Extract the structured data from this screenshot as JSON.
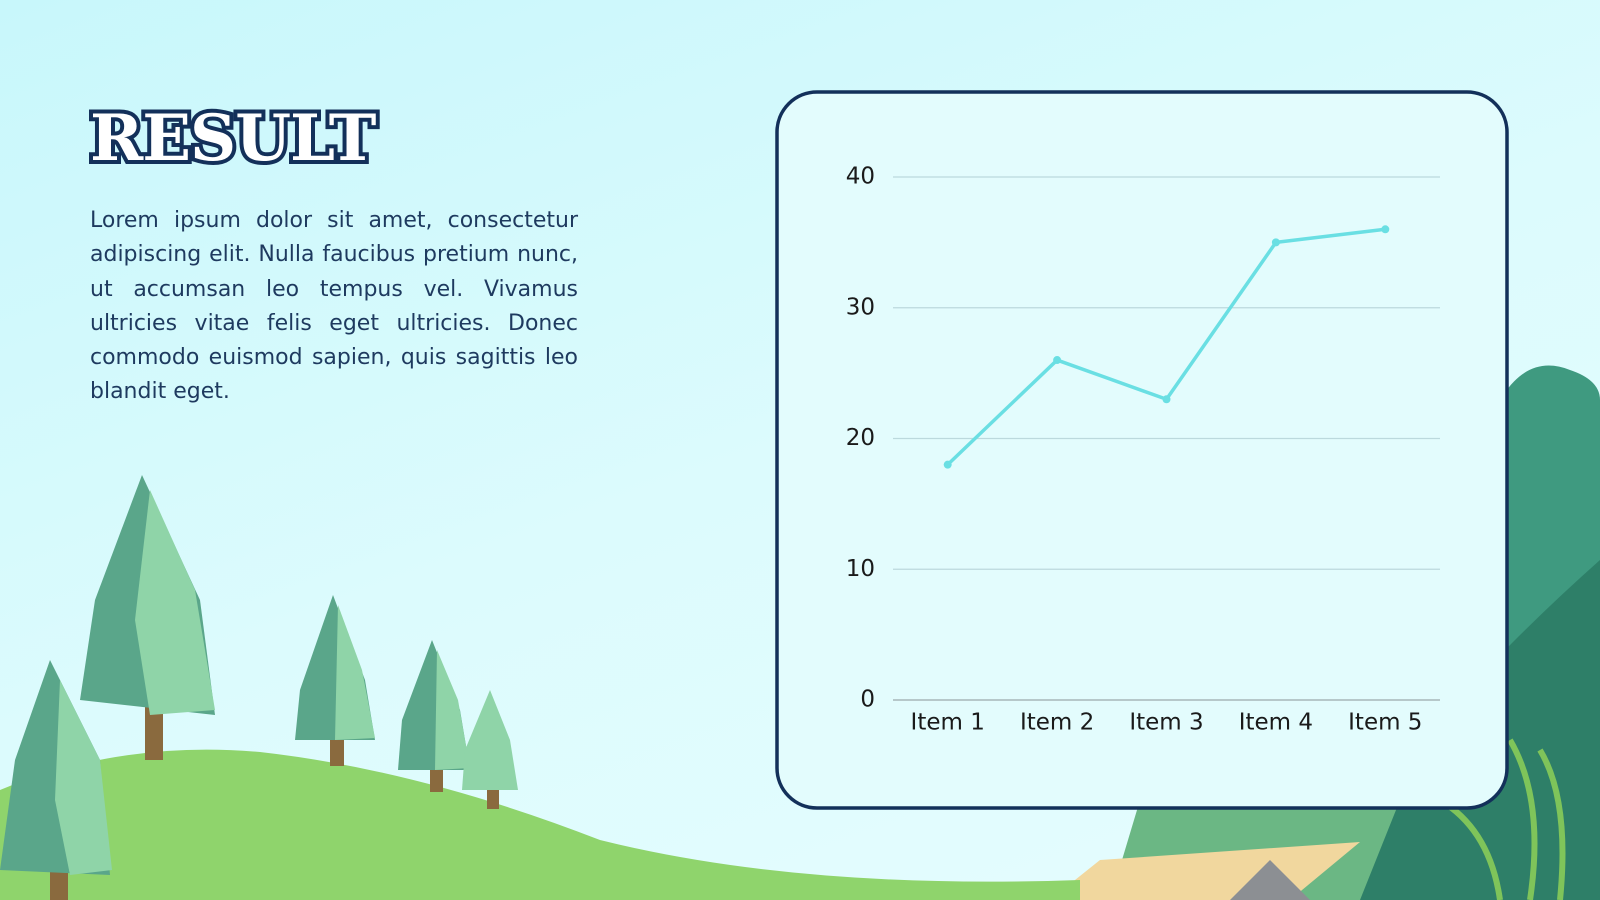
{
  "title": "RESULT",
  "body": "Lorem ipsum dolor sit amet, consectetur adipiscing elit. Nulla faucibus pretium nunc, ut accumsan leo tempus vel. Vivamus ultricies vitae felis eget ultricies. Donec commodo euismod sapien, quis sagittis leo blandit eget.",
  "chart_data": {
    "type": "line",
    "categories": [
      "Item 1",
      "Item 2",
      "Item 3",
      "Item 4",
      "Item 5"
    ],
    "values": [
      18,
      26,
      23,
      35,
      36
    ],
    "color": "#6adfe3",
    "ylim": [
      0,
      40
    ],
    "yticks": [
      0,
      10,
      20,
      30,
      40
    ],
    "grid": true
  }
}
